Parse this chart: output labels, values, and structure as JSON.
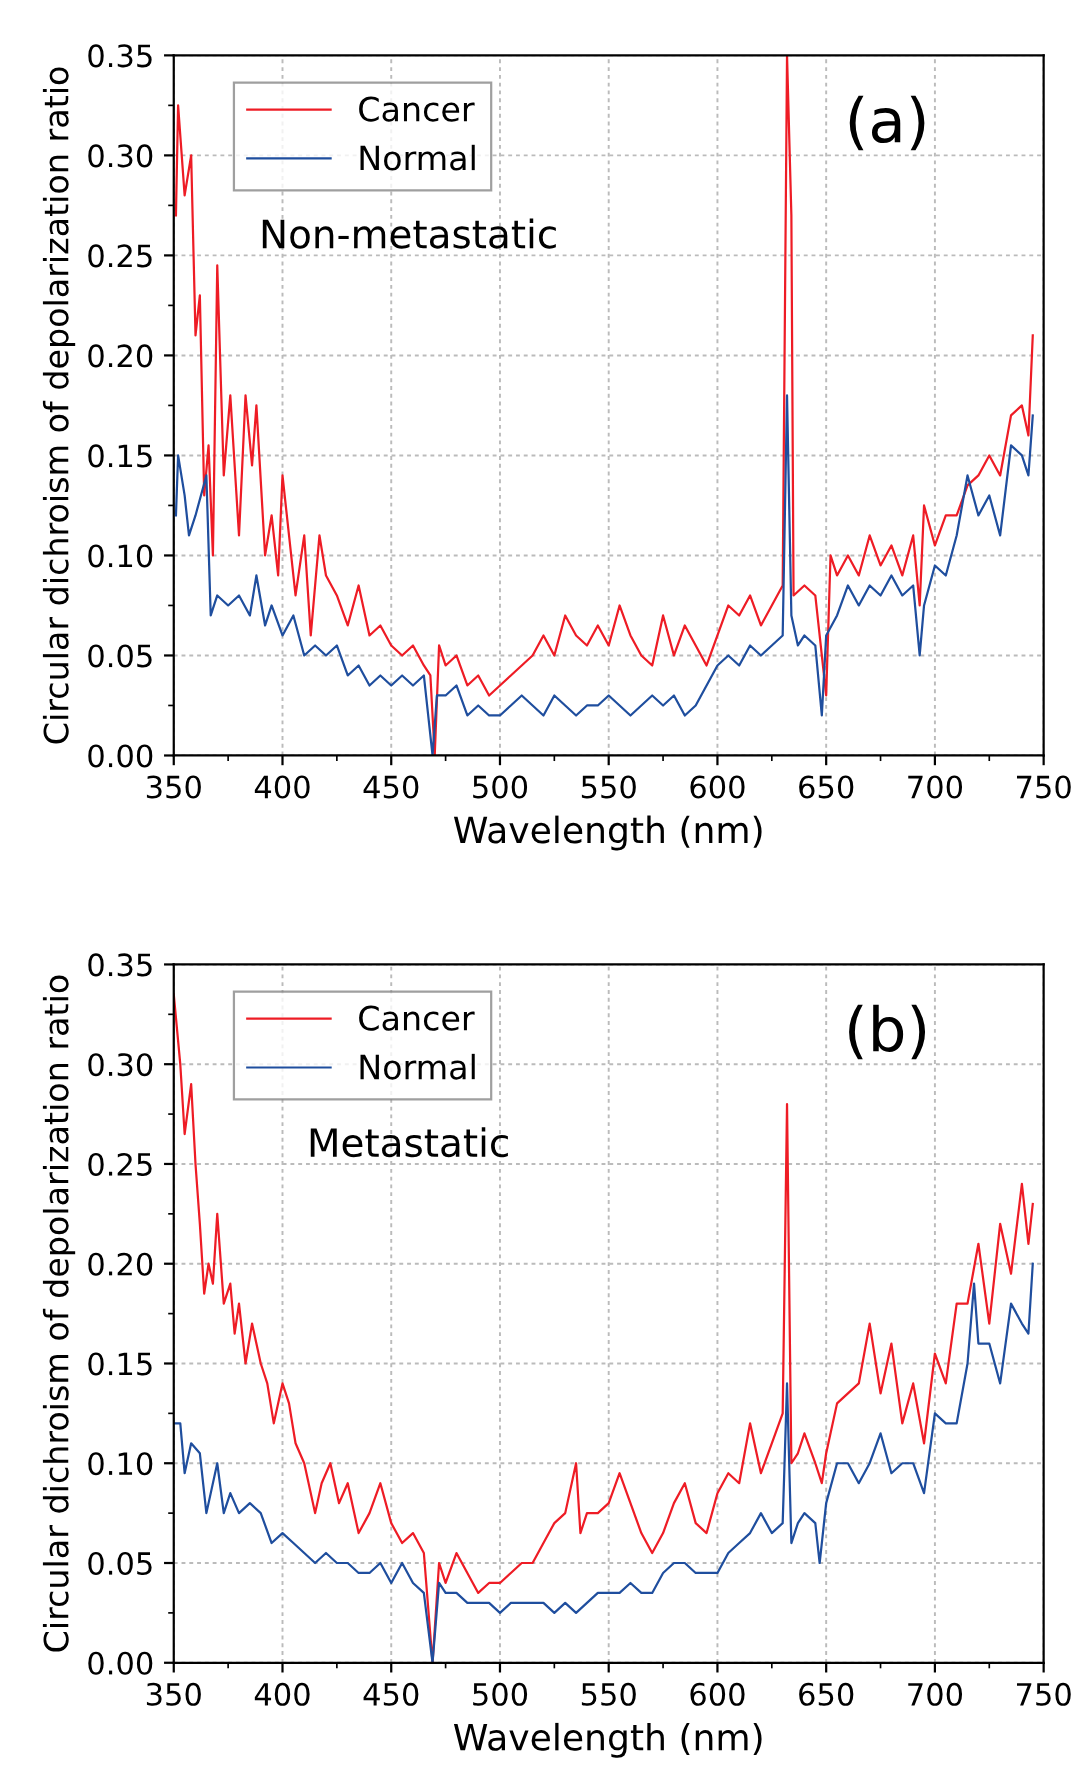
{
  "chart_data": [
    {
      "type": "line",
      "xlabel": "Wavelength (nm)",
      "ylabel": "Circular dichroism of depolarization ratio",
      "annotations": [
        "(a)",
        "Non-metastatic"
      ],
      "xlim": [
        350,
        750
      ],
      "ylim": [
        0,
        0.35
      ],
      "xticks": [
        350,
        400,
        450,
        500,
        550,
        600,
        650,
        700,
        750
      ],
      "yticks": [
        {
          "value": 0,
          "label": "0.00"
        },
        {
          "value": 0.05,
          "label": "0.05"
        },
        {
          "value": 0.1,
          "label": "0.10"
        },
        {
          "value": 0.15,
          "label": "0.15"
        },
        {
          "value": 0.2,
          "label": "0.20"
        },
        {
          "value": 0.25,
          "label": "0.25"
        },
        {
          "value": 0.3,
          "label": "0.30"
        },
        {
          "value": 0.35,
          "label": "0.35"
        }
      ],
      "grid": true,
      "legend": "top left",
      "marker": "none",
      "line_style": "solid",
      "series": [
        {
          "name": "Cancer",
          "color": "#ee1c25",
          "x": [
            351,
            352,
            355,
            358,
            360,
            362,
            364,
            366,
            368,
            370,
            373,
            376,
            380,
            383,
            386,
            388,
            392,
            395,
            398,
            400,
            403,
            406,
            410,
            413,
            417,
            420,
            425,
            430,
            435,
            440,
            445,
            450,
            455,
            460,
            465,
            468,
            470,
            472,
            475,
            480,
            485,
            490,
            495,
            500,
            505,
            510,
            515,
            520,
            525,
            530,
            535,
            540,
            545,
            550,
            555,
            560,
            565,
            570,
            575,
            580,
            585,
            590,
            595,
            600,
            605,
            610,
            615,
            620,
            625,
            630,
            632,
            634,
            635,
            640,
            645,
            650,
            652,
            655,
            660,
            665,
            670,
            675,
            680,
            685,
            690,
            693,
            695,
            700,
            705,
            710,
            715,
            720,
            725,
            730,
            735,
            740,
            743,
            745
          ],
          "values": [
            0.27,
            0.325,
            0.28,
            0.3,
            0.21,
            0.23,
            0.13,
            0.155,
            0.1,
            0.245,
            0.14,
            0.18,
            0.11,
            0.18,
            0.145,
            0.175,
            0.1,
            0.12,
            0.09,
            0.14,
            0.11,
            0.08,
            0.11,
            0.06,
            0.11,
            0.09,
            0.08,
            0.065,
            0.085,
            0.06,
            0.065,
            0.055,
            0.05,
            0.055,
            0.045,
            0.04,
            0.0,
            0.055,
            0.045,
            0.05,
            0.035,
            0.04,
            0.03,
            0.035,
            0.04,
            0.045,
            0.05,
            0.06,
            0.05,
            0.07,
            0.06,
            0.055,
            0.065,
            0.055,
            0.075,
            0.06,
            0.05,
            0.045,
            0.07,
            0.05,
            0.065,
            0.055,
            0.045,
            0.06,
            0.075,
            0.07,
            0.08,
            0.065,
            0.075,
            0.085,
            0.35,
            0.27,
            0.08,
            0.085,
            0.08,
            0.03,
            0.1,
            0.09,
            0.1,
            0.09,
            0.11,
            0.095,
            0.105,
            0.09,
            0.11,
            0.075,
            0.125,
            0.105,
            0.12,
            0.12,
            0.135,
            0.14,
            0.15,
            0.14,
            0.17,
            0.175,
            0.16,
            0.21
          ]
        },
        {
          "name": "Normal",
          "color": "#1f4e9e",
          "x": [
            351,
            352,
            355,
            357,
            360,
            365,
            367,
            370,
            375,
            380,
            385,
            388,
            392,
            395,
            400,
            405,
            410,
            415,
            420,
            425,
            430,
            435,
            440,
            445,
            450,
            455,
            460,
            465,
            469,
            471,
            475,
            480,
            485,
            490,
            495,
            500,
            505,
            510,
            515,
            520,
            525,
            530,
            535,
            540,
            545,
            550,
            555,
            560,
            565,
            570,
            575,
            580,
            585,
            590,
            595,
            600,
            605,
            610,
            615,
            620,
            625,
            630,
            632,
            634,
            637,
            640,
            645,
            648,
            650,
            655,
            660,
            665,
            670,
            675,
            680,
            685,
            690,
            693,
            695,
            700,
            705,
            710,
            715,
            720,
            725,
            730,
            735,
            740,
            743,
            745
          ],
          "values": [
            0.12,
            0.15,
            0.13,
            0.11,
            0.12,
            0.14,
            0.07,
            0.08,
            0.075,
            0.08,
            0.07,
            0.09,
            0.065,
            0.075,
            0.06,
            0.07,
            0.05,
            0.055,
            0.05,
            0.055,
            0.04,
            0.045,
            0.035,
            0.04,
            0.035,
            0.04,
            0.035,
            0.04,
            0.0,
            0.03,
            0.03,
            0.035,
            0.02,
            0.025,
            0.02,
            0.02,
            0.025,
            0.03,
            0.025,
            0.02,
            0.03,
            0.025,
            0.02,
            0.025,
            0.025,
            0.03,
            0.025,
            0.02,
            0.025,
            0.03,
            0.025,
            0.03,
            0.02,
            0.025,
            0.035,
            0.045,
            0.05,
            0.045,
            0.055,
            0.05,
            0.055,
            0.06,
            0.18,
            0.07,
            0.055,
            0.06,
            0.055,
            0.02,
            0.06,
            0.07,
            0.085,
            0.075,
            0.085,
            0.08,
            0.09,
            0.08,
            0.085,
            0.05,
            0.075,
            0.095,
            0.09,
            0.11,
            0.14,
            0.12,
            0.13,
            0.11,
            0.155,
            0.15,
            0.14,
            0.17
          ]
        }
      ]
    },
    {
      "type": "line",
      "xlabel": "Wavelength (nm)",
      "ylabel": "Circular dichroism of depolarization ratio",
      "annotations": [
        "(b)",
        "Metastatic"
      ],
      "xlim": [
        350,
        750
      ],
      "ylim": [
        0,
        0.35
      ],
      "xticks": [
        350,
        400,
        450,
        500,
        550,
        600,
        650,
        700,
        750
      ],
      "yticks": [
        {
          "value": 0,
          "label": "0.00"
        },
        {
          "value": 0.05,
          "label": "0.05"
        },
        {
          "value": 0.1,
          "label": "0.10"
        },
        {
          "value": 0.15,
          "label": "0.15"
        },
        {
          "value": 0.2,
          "label": "0.20"
        },
        {
          "value": 0.25,
          "label": "0.25"
        },
        {
          "value": 0.3,
          "label": "0.30"
        },
        {
          "value": 0.35,
          "label": "0.35"
        }
      ],
      "grid": true,
      "legend": "top left",
      "marker": "none",
      "line_style": "solid",
      "series": [
        {
          "name": "Cancer",
          "color": "#ee1c25",
          "x": [
            350,
            353,
            355,
            358,
            360,
            362,
            364,
            366,
            368,
            370,
            373,
            376,
            378,
            380,
            383,
            386,
            390,
            393,
            396,
            400,
            403,
            406,
            410,
            415,
            418,
            422,
            426,
            430,
            435,
            440,
            445,
            450,
            455,
            460,
            465,
            469,
            472,
            475,
            480,
            485,
            490,
            495,
            500,
            505,
            510,
            515,
            520,
            525,
            530,
            535,
            537,
            540,
            545,
            550,
            555,
            560,
            565,
            570,
            575,
            580,
            585,
            590,
            595,
            600,
            605,
            610,
            615,
            620,
            625,
            630,
            632,
            634,
            637,
            640,
            645,
            648,
            650,
            655,
            660,
            665,
            670,
            675,
            680,
            685,
            690,
            695,
            700,
            705,
            710,
            715,
            720,
            725,
            730,
            735,
            740,
            743,
            745
          ],
          "values": [
            0.335,
            0.3,
            0.265,
            0.29,
            0.25,
            0.22,
            0.185,
            0.2,
            0.19,
            0.225,
            0.18,
            0.19,
            0.165,
            0.18,
            0.15,
            0.17,
            0.15,
            0.14,
            0.12,
            0.14,
            0.13,
            0.11,
            0.1,
            0.075,
            0.09,
            0.1,
            0.08,
            0.09,
            0.065,
            0.075,
            0.09,
            0.07,
            0.06,
            0.065,
            0.055,
            0.0,
            0.05,
            0.04,
            0.055,
            0.045,
            0.035,
            0.04,
            0.04,
            0.045,
            0.05,
            0.05,
            0.06,
            0.07,
            0.075,
            0.1,
            0.065,
            0.075,
            0.075,
            0.08,
            0.095,
            0.08,
            0.065,
            0.055,
            0.065,
            0.08,
            0.09,
            0.07,
            0.065,
            0.085,
            0.095,
            0.09,
            0.12,
            0.095,
            0.11,
            0.125,
            0.28,
            0.1,
            0.105,
            0.115,
            0.1,
            0.09,
            0.105,
            0.13,
            0.135,
            0.14,
            0.17,
            0.135,
            0.16,
            0.12,
            0.14,
            0.11,
            0.155,
            0.14,
            0.18,
            0.18,
            0.21,
            0.17,
            0.22,
            0.195,
            0.24,
            0.21,
            0.23
          ]
        },
        {
          "name": "Normal",
          "color": "#1f4e9e",
          "x": [
            350,
            353,
            355,
            358,
            362,
            365,
            370,
            373,
            376,
            380,
            385,
            390,
            395,
            400,
            405,
            410,
            415,
            420,
            425,
            430,
            435,
            440,
            445,
            450,
            455,
            460,
            465,
            469,
            472,
            475,
            480,
            485,
            490,
            495,
            500,
            505,
            510,
            515,
            520,
            525,
            530,
            535,
            540,
            545,
            550,
            555,
            560,
            565,
            570,
            575,
            580,
            585,
            590,
            595,
            600,
            605,
            610,
            615,
            620,
            625,
            630,
            632,
            634,
            637,
            640,
            645,
            647,
            650,
            655,
            660,
            665,
            670,
            675,
            680,
            685,
            690,
            695,
            700,
            705,
            710,
            715,
            718,
            720,
            725,
            730,
            735,
            740,
            743,
            745
          ],
          "values": [
            0.12,
            0.12,
            0.095,
            0.11,
            0.105,
            0.075,
            0.1,
            0.075,
            0.085,
            0.075,
            0.08,
            0.075,
            0.06,
            0.065,
            0.06,
            0.055,
            0.05,
            0.055,
            0.05,
            0.05,
            0.045,
            0.045,
            0.05,
            0.04,
            0.05,
            0.04,
            0.035,
            0.0,
            0.04,
            0.035,
            0.035,
            0.03,
            0.03,
            0.03,
            0.025,
            0.03,
            0.03,
            0.03,
            0.03,
            0.025,
            0.03,
            0.025,
            0.03,
            0.035,
            0.035,
            0.035,
            0.04,
            0.035,
            0.035,
            0.045,
            0.05,
            0.05,
            0.045,
            0.045,
            0.045,
            0.055,
            0.06,
            0.065,
            0.075,
            0.065,
            0.07,
            0.14,
            0.06,
            0.07,
            0.075,
            0.07,
            0.05,
            0.08,
            0.1,
            0.1,
            0.09,
            0.1,
            0.115,
            0.095,
            0.1,
            0.1,
            0.085,
            0.125,
            0.12,
            0.12,
            0.15,
            0.19,
            0.16,
            0.16,
            0.14,
            0.18,
            0.17,
            0.165,
            0.2
          ]
        }
      ]
    }
  ]
}
